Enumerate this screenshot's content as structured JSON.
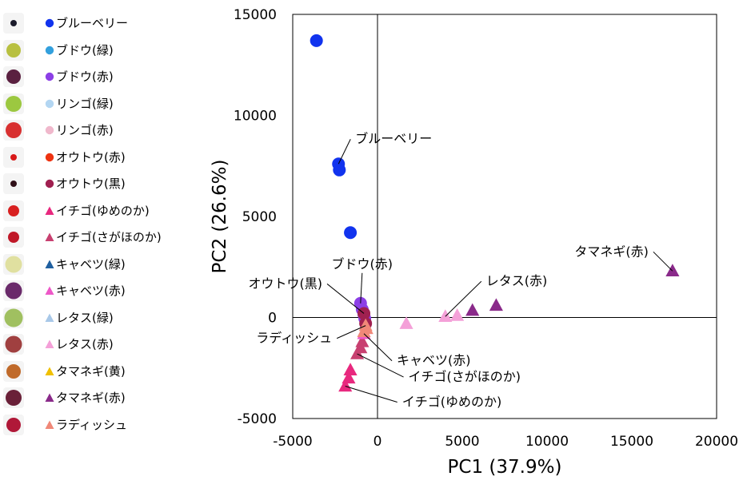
{
  "chart_data": {
    "type": "scatter",
    "xlabel": "PC1 (37.9%)",
    "ylabel": "PC2 (26.6%)",
    "xlim": [
      -5000,
      20000
    ],
    "ylim": [
      -5000,
      15000
    ],
    "xticks": [
      -5000,
      0,
      5000,
      10000,
      15000,
      20000
    ],
    "yticks": [
      -5000,
      0,
      5000,
      10000,
      15000
    ],
    "xtick_labels": [
      "-5000",
      "0",
      "5000",
      "10000",
      "15000",
      "20000"
    ],
    "ytick_labels": [
      "-5000",
      "0",
      "5000",
      "10000",
      "15000"
    ],
    "grid": false,
    "legend_position": "left",
    "series": [
      {
        "name": "ブルーベリー",
        "marker": "circle",
        "color": "#1133ee",
        "points": [
          [
            -3600,
            13700
          ],
          [
            -2300,
            7600
          ],
          [
            -2250,
            7300
          ],
          [
            -1600,
            4200
          ]
        ]
      },
      {
        "name": "ブドウ(緑)",
        "marker": "circle",
        "color": "#33a0dd",
        "points": []
      },
      {
        "name": "ブドウ(赤)",
        "marker": "circle",
        "color": "#8c3fe6",
        "points": [
          [
            -1000,
            700
          ],
          [
            -900,
            400
          ],
          [
            -800,
            150
          ],
          [
            -750,
            -50
          ]
        ]
      },
      {
        "name": "リンゴ(緑)",
        "marker": "circle",
        "color": "#b3d6f2",
        "points": []
      },
      {
        "name": "リンゴ(赤)",
        "marker": "circle",
        "color": "#f0b8cc",
        "points": []
      },
      {
        "name": "オウトウ(赤)",
        "marker": "circle",
        "color": "#ee3311",
        "points": []
      },
      {
        "name": "オウトウ(黒)",
        "marker": "circle",
        "color": "#a02050",
        "points": [
          [
            -800,
            200
          ],
          [
            -700,
            -300
          ]
        ]
      },
      {
        "name": "イチゴ(ゆめのか)",
        "marker": "triangle",
        "color": "#e8287e",
        "points": [
          [
            -1900,
            -3400
          ],
          [
            -1700,
            -3000
          ],
          [
            -1600,
            -2600
          ]
        ]
      },
      {
        "name": "イチゴ(さがほのか)",
        "marker": "triangle",
        "color": "#c84070",
        "points": [
          [
            -1200,
            -1800
          ],
          [
            -1000,
            -1500
          ],
          [
            -900,
            -1200
          ]
        ]
      },
      {
        "name": "キャベツ(緑)",
        "marker": "triangle",
        "color": "#2060a0",
        "points": []
      },
      {
        "name": "キャベツ(赤)",
        "marker": "triangle",
        "color": "#ee58c8",
        "points": [
          [
            -800,
            -800
          ],
          [
            -700,
            -550
          ]
        ]
      },
      {
        "name": "レタス(緑)",
        "marker": "triangle",
        "color": "#a8c8e8",
        "points": []
      },
      {
        "name": "レタス(赤)",
        "marker": "triangle",
        "color": "#f4a0d8",
        "points": [
          [
            1700,
            -300
          ],
          [
            4000,
            50
          ],
          [
            4700,
            100
          ]
        ]
      },
      {
        "name": "タマネギ(黄)",
        "marker": "triangle",
        "color": "#f0c000",
        "points": []
      },
      {
        "name": "タマネギ(赤)",
        "marker": "triangle",
        "color": "#8a2a8a",
        "points": [
          [
            5600,
            350
          ],
          [
            7000,
            600
          ],
          [
            17400,
            2300
          ]
        ]
      },
      {
        "name": "ラディッシュ",
        "marker": "triangle",
        "color": "#f08878",
        "points": [
          [
            -800,
            -700
          ],
          [
            -700,
            -400
          ],
          [
            -650,
            -550
          ]
        ]
      }
    ],
    "annotations": [
      {
        "text": "ブルーベリー",
        "x": -2300,
        "y": 7600,
        "dx": 15,
        "dy": -31,
        "anchor": "start"
      },
      {
        "text": "ブドウ(赤)",
        "x": -1000,
        "y": 700,
        "dx": 2,
        "dy": -38,
        "anchor": "middle"
      },
      {
        "text": "オウトウ(黒)",
        "x": -800,
        "y": 200,
        "dx": -46,
        "dy": -37,
        "anchor": "end"
      },
      {
        "text": "ラディッシュ",
        "x": -700,
        "y": -400,
        "dx": -36,
        "dy": 16,
        "anchor": "end"
      },
      {
        "text": "キャベツ(赤)",
        "x": -800,
        "y": -800,
        "dx": 35,
        "dy": 34,
        "anchor": "start"
      },
      {
        "text": "イチゴ(さがほのか)",
        "x": -1200,
        "y": -1800,
        "dx": 58,
        "dy": 29,
        "anchor": "start"
      },
      {
        "text": "イチゴ(ゆめのか)",
        "x": -1900,
        "y": -3400,
        "dx": 65,
        "dy": 20,
        "anchor": "start"
      },
      {
        "text": "レタス(赤)",
        "x": 4000,
        "y": 50,
        "dx": 45,
        "dy": -44,
        "anchor": "start"
      },
      {
        "text": "タマネギ(赤)",
        "x": 17400,
        "y": 2300,
        "dx": -24,
        "dy": -24,
        "anchor": "end"
      }
    ]
  },
  "legend": {
    "thumbs": [
      {
        "color": "#1a1a2a",
        "size": 0.3
      },
      {
        "color": "#b8c040",
        "size": 0.7
      },
      {
        "color": "#5a2040",
        "size": 0.7
      },
      {
        "color": "#9cc840",
        "size": 0.75
      },
      {
        "color": "#d83030",
        "size": 0.75
      },
      {
        "color": "#d81818",
        "size": 0.3
      },
      {
        "color": "#301018",
        "size": 0.3
      },
      {
        "color": "#d82020",
        "size": 0.55
      },
      {
        "color": "#c01828",
        "size": 0.55
      },
      {
        "color": "#e0e0a0",
        "size": 0.8
      },
      {
        "color": "#6a2a6a",
        "size": 0.8
      },
      {
        "color": "#a0c060",
        "size": 0.9
      },
      {
        "color": "#a04040",
        "size": 0.8
      },
      {
        "color": "#c06a2a",
        "size": 0.7
      },
      {
        "color": "#6a2038",
        "size": 0.75
      },
      {
        "color": "#b01838",
        "size": 0.7
      }
    ]
  }
}
